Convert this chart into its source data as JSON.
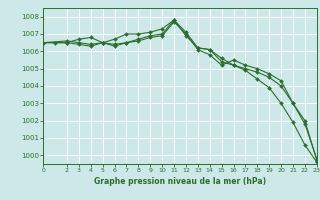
{
  "title": "Graphe pression niveau de la mer (hPa)",
  "bg_color": "#cce8e8",
  "grid_color": "#ffffff",
  "line_color": "#2d6e2d",
  "xlim": [
    0,
    23
  ],
  "ylim": [
    999.5,
    1008.5
  ],
  "yticks": [
    1000,
    1001,
    1002,
    1003,
    1004,
    1005,
    1006,
    1007,
    1008
  ],
  "xticks": [
    0,
    2,
    3,
    4,
    5,
    6,
    7,
    8,
    9,
    10,
    11,
    12,
    13,
    14,
    15,
    16,
    17,
    18,
    19,
    20,
    21,
    22,
    23
  ],
  "series": [
    {
      "x": [
        0,
        1,
        2,
        3,
        4,
        5,
        6,
        7,
        8,
        9,
        10,
        11,
        12,
        13,
        14,
        15,
        16,
        17,
        18,
        19,
        20,
        21,
        22,
        23
      ],
      "y": [
        1006.5,
        1006.5,
        1006.5,
        1006.7,
        1006.8,
        1006.5,
        1006.7,
        1007.0,
        1007.0,
        1007.1,
        1007.3,
        1007.8,
        1006.9,
        1006.2,
        1006.1,
        1005.6,
        1005.2,
        1004.9,
        1004.4,
        1003.9,
        1003.0,
        1001.9,
        1000.6,
        999.6
      ]
    },
    {
      "x": [
        0,
        2,
        3,
        4,
        5,
        6,
        7,
        8,
        9,
        10,
        11,
        12,
        13,
        14,
        15,
        16,
        17,
        18,
        19,
        20,
        21,
        22,
        23
      ],
      "y": [
        1006.5,
        1006.5,
        1006.4,
        1006.3,
        1006.5,
        1006.3,
        1006.5,
        1006.7,
        1006.9,
        1007.0,
        1007.8,
        1007.1,
        1006.2,
        1006.1,
        1005.4,
        1005.2,
        1005.0,
        1004.8,
        1004.5,
        1004.0,
        1003.0,
        1002.0,
        999.7
      ]
    },
    {
      "x": [
        0,
        2,
        3,
        4,
        5,
        6,
        7,
        8,
        9,
        10,
        11,
        12,
        13,
        14,
        15,
        16,
        17,
        18,
        19,
        20,
        21,
        22,
        23
      ],
      "y": [
        1006.5,
        1006.6,
        1006.5,
        1006.4,
        1006.5,
        1006.4,
        1006.5,
        1006.6,
        1006.8,
        1006.9,
        1007.7,
        1007.0,
        1006.1,
        1005.8,
        1005.2,
        1005.5,
        1005.2,
        1005.0,
        1004.7,
        1004.3,
        1003.0,
        1001.8,
        999.8
      ]
    }
  ]
}
